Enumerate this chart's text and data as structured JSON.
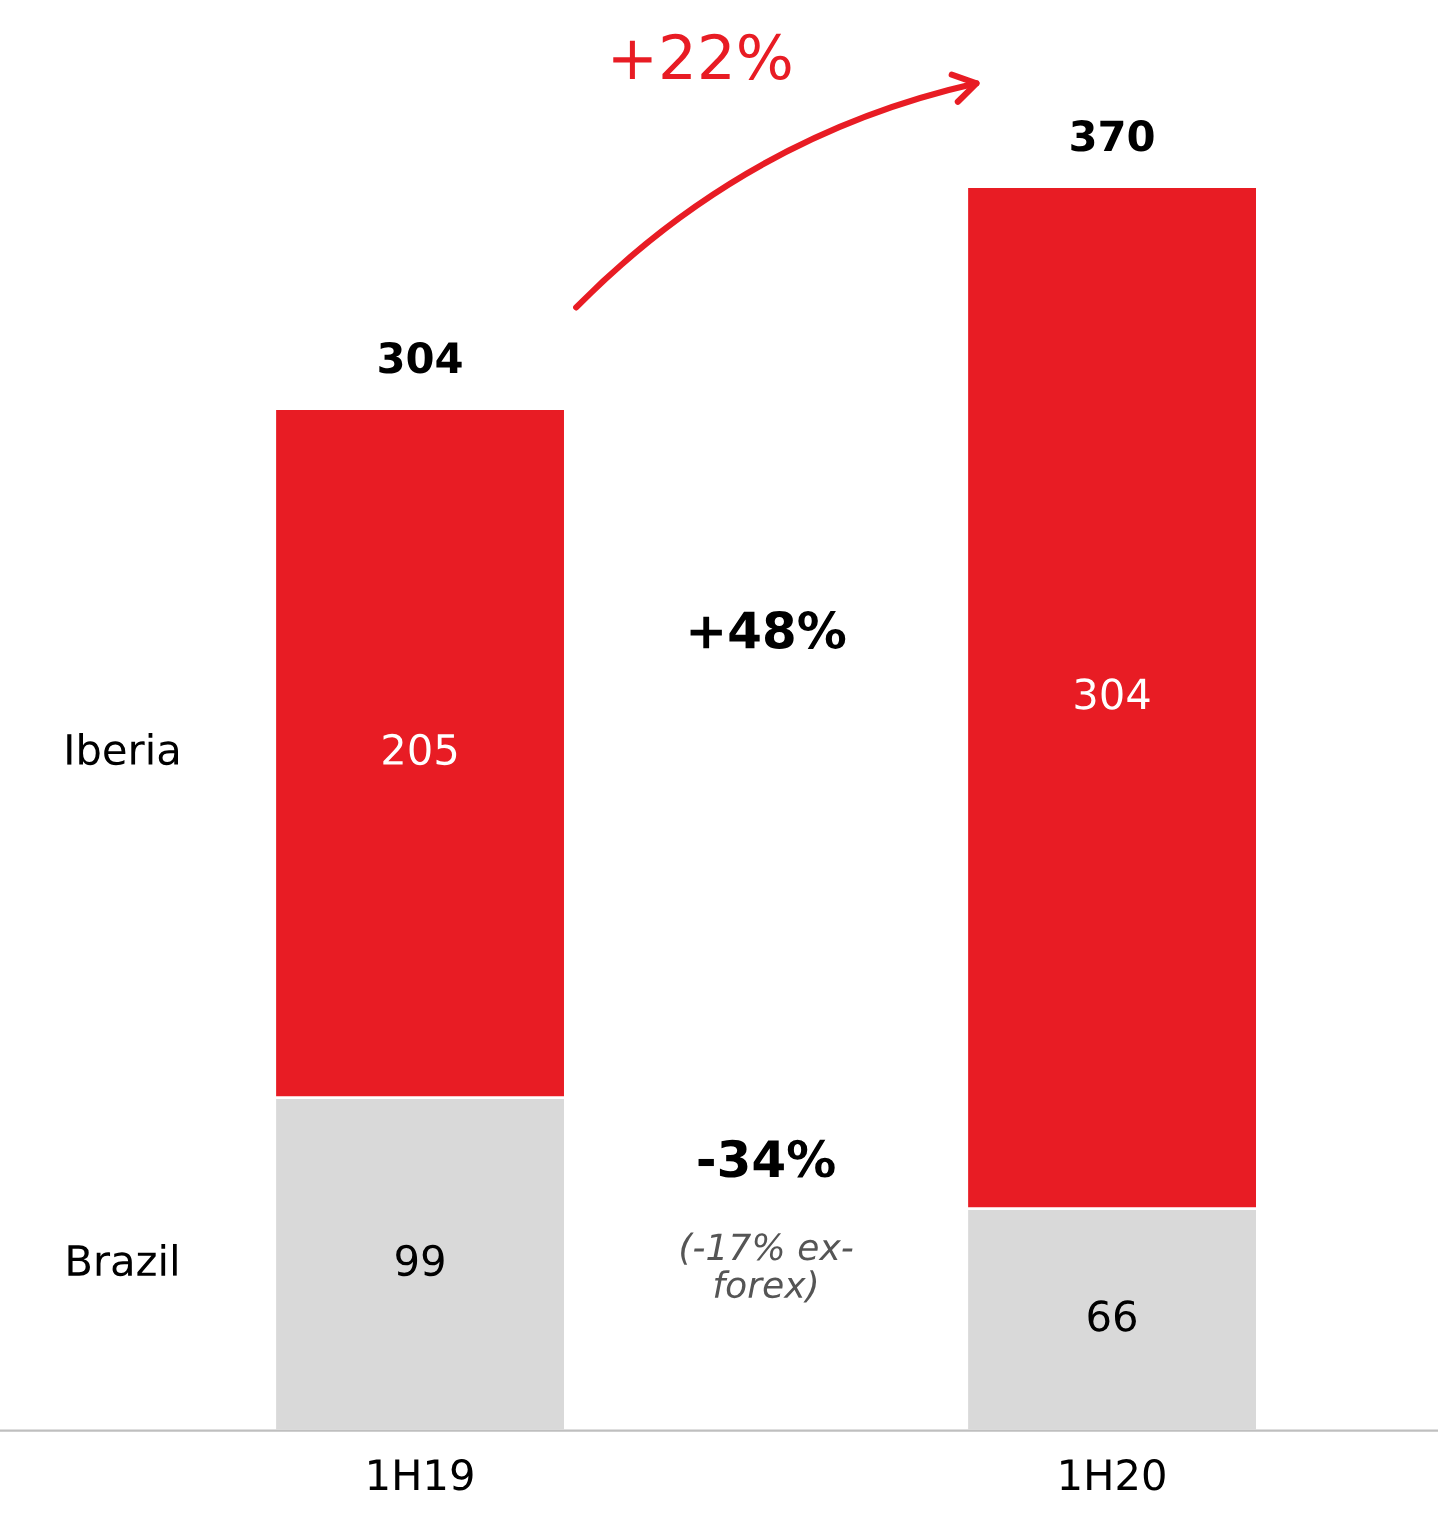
{
  "chart_data": {
    "type": "bar",
    "stacked": true,
    "categories": [
      "1H19",
      "1H20"
    ],
    "series": [
      {
        "name": "Brazil",
        "color": "#d9d9d9",
        "values": [
          99,
          66
        ]
      },
      {
        "name": "Iberia",
        "color": "#e81c24",
        "values": [
          205,
          304
        ]
      }
    ],
    "data_labels": true,
    "totals": [
      "304",
      "370"
    ],
    "legend": false,
    "grid": false,
    "annotations": [
      "+22%",
      "+48%",
      "-34%",
      "(-17% ex-forex)"
    ]
  }
}
